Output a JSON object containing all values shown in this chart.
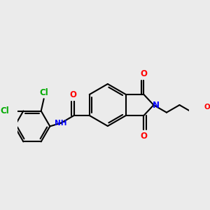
{
  "bg_color": "#ebebeb",
  "bond_color": "#000000",
  "line_width": 1.5,
  "font_size": 8.5,
  "figsize": [
    3.0,
    3.0
  ],
  "dpi": 100,
  "colors": {
    "O": "#ff0000",
    "N": "#0000ff",
    "Cl": "#00aa00",
    "C": "#000000"
  }
}
